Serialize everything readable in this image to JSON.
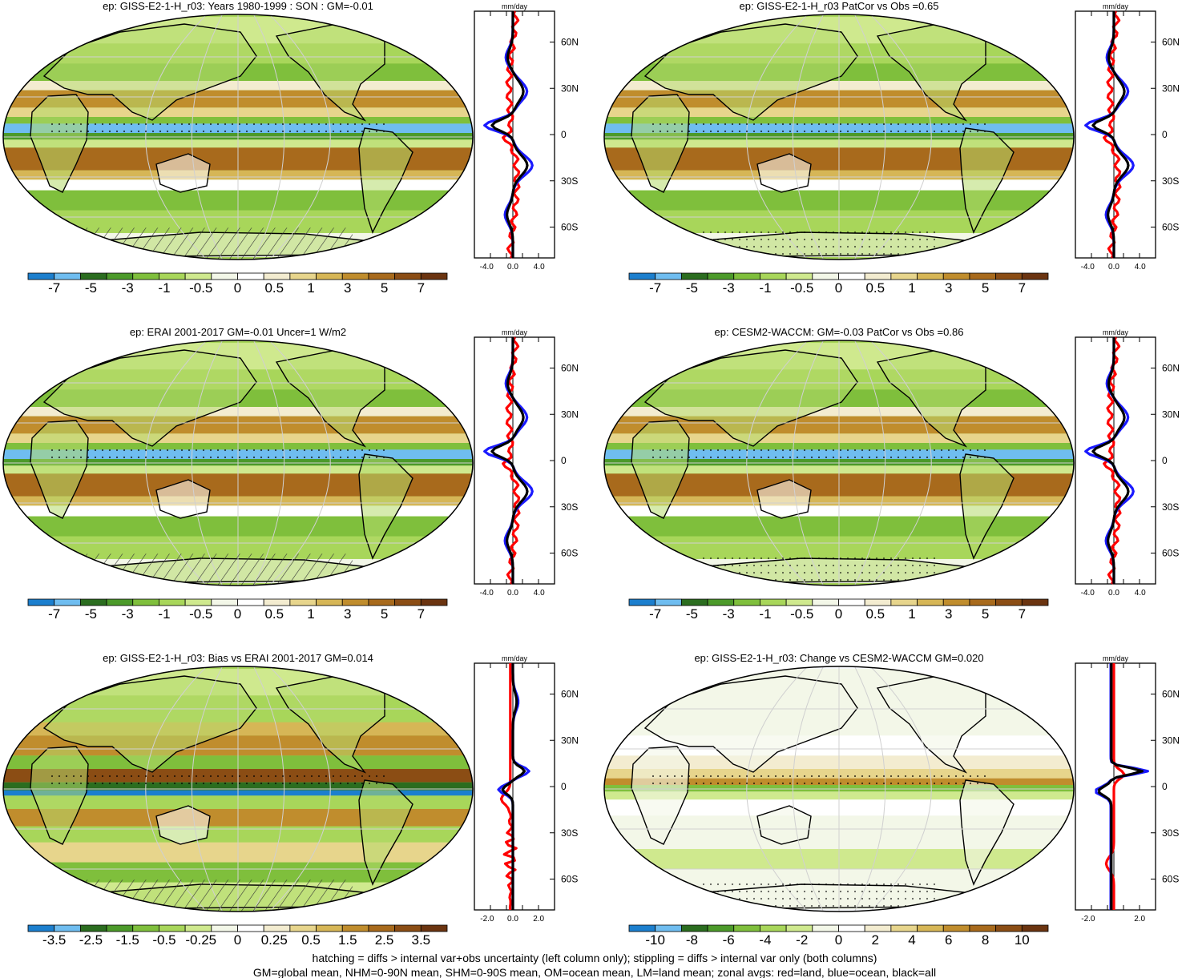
{
  "panels": [
    {
      "title": "ep: GISS-E2-1-H_r03: Years 1980-1999 : SON : GM=-0.01",
      "colorbar": [
        "-7",
        "-5",
        "-3",
        "-1",
        "-0.5",
        "0",
        "0.5",
        "1",
        "3",
        "5",
        "7"
      ],
      "zonal_xticks": [
        "-4.0",
        "0.0",
        "4.0"
      ],
      "hatching": true,
      "type": "mean"
    },
    {
      "title": "ep: GISS-E2-1-H_r03 PatCor vs Obs =0.65",
      "colorbar": [
        "-7",
        "-5",
        "-3",
        "-1",
        "-0.5",
        "0",
        "0.5",
        "1",
        "3",
        "5",
        "7"
      ],
      "zonal_xticks": [
        "-4.0",
        "0.0",
        "4.0"
      ],
      "hatching": false,
      "type": "mean"
    },
    {
      "title": "ep: ERAI 2001-2017 GM=-0.01 Uncer=1 W/m2",
      "colorbar": [
        "-7",
        "-5",
        "-3",
        "-1",
        "-0.5",
        "0",
        "0.5",
        "1",
        "3",
        "5",
        "7"
      ],
      "zonal_xticks": [
        "-4.0",
        "0.0",
        "4.0"
      ],
      "hatching": true,
      "type": "mean"
    },
    {
      "title": "ep: CESM2-WACCM: GM=-0.03 PatCor vs Obs =0.86",
      "colorbar": [
        "-7",
        "-5",
        "-3",
        "-1",
        "-0.5",
        "0",
        "0.5",
        "1",
        "3",
        "5",
        "7"
      ],
      "zonal_xticks": [
        "-4.0",
        "0.0",
        "4.0"
      ],
      "hatching": false,
      "type": "mean"
    },
    {
      "title": "ep: GISS-E2-1-H_r03: Bias vs ERAI 2001-2017  GM=0.014",
      "colorbar": [
        "-3.5",
        "-2.5",
        "-1.5",
        "-0.5",
        "-0.25",
        "0",
        "0.25",
        "0.5",
        "1.5",
        "2.5",
        "3.5"
      ],
      "zonal_xticks": [
        "-2.0",
        "0.0",
        "2.0"
      ],
      "hatching": true,
      "type": "bias"
    },
    {
      "title": "ep: GISS-E2-1-H_r03: Change vs CESM2-WACCM GM=0.020",
      "colorbar": [
        "-10",
        "-8",
        "-6",
        "-4",
        "-2",
        "0",
        "2",
        "4",
        "6",
        "8",
        "10"
      ],
      "zonal_xticks": [
        "-2.0",
        "2.0"
      ],
      "hatching": false,
      "type": "change"
    }
  ],
  "zonal_unit": "mm/day",
  "lat_labels": [
    "60N",
    "30N",
    "0",
    "30S",
    "60S"
  ],
  "colors": {
    "palette": [
      "#1c7fce",
      "#6fbdf0",
      "#2b6d1f",
      "#4c9a2a",
      "#7fbf3c",
      "#a8d65a",
      "#cfe98e",
      "#f3f7e8",
      "#ffffff",
      "#f3ecd0",
      "#e7d58c",
      "#d6b656",
      "#c08d2d",
      "#a86a1c",
      "#8b4d14",
      "#6b3410"
    ],
    "land_line": "#ff0000",
    "ocean_line": "#1a1aff",
    "all_line": "#000000"
  },
  "footer": {
    "line1": "hatching = diffs > internal var+obs uncertainty (left column only); stippling = diffs > internal var only (both columns)",
    "line2": "GM=global mean, NHM=0-90N mean, SHM=0-90S mean, OM=ocean mean, LM=land mean; zonal avgs: red=land, blue=ocean, black=all"
  }
}
